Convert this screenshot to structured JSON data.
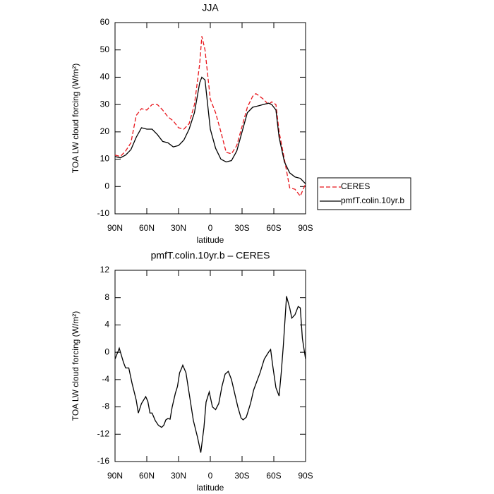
{
  "chart_data": [
    {
      "type": "line",
      "title": "JJA",
      "xlabel": "latitude",
      "ylabel": "TOA LW cloud forcing (W/m²)",
      "x": [
        90,
        85,
        80,
        75,
        70,
        65,
        60,
        55,
        50,
        45,
        40,
        35,
        30,
        25,
        20,
        15,
        10,
        8,
        5,
        0,
        -5,
        -10,
        -15,
        -20,
        -25,
        -30,
        -35,
        -40,
        -43,
        -45,
        -50,
        -55,
        -58,
        -62,
        -65,
        -70,
        -75,
        -80,
        -85,
        -90
      ],
      "series": [
        {
          "name": "CERES",
          "color": "#e8151b",
          "dash": true,
          "values": [
            11.5,
            11,
            13,
            16,
            26,
            28.5,
            28,
            30,
            30,
            28,
            25.5,
            24,
            21.5,
            21,
            23,
            30,
            45,
            55,
            50,
            32,
            27,
            20,
            12.5,
            12,
            15,
            22,
            29,
            33,
            34,
            33.5,
            32,
            30,
            31,
            30,
            20,
            10,
            -0.5,
            -1,
            -3.5,
            1
          ]
        },
        {
          "name": "pmfT.colin.10yr.b",
          "color": "#000000",
          "dash": false,
          "values": [
            11,
            10.5,
            11.5,
            13.5,
            18,
            21.5,
            21,
            21,
            19,
            16.5,
            16,
            14.5,
            15,
            17,
            21,
            27,
            38,
            40,
            39,
            21,
            14,
            10,
            9,
            9.5,
            13,
            20,
            27,
            29,
            29.3,
            29.5,
            30,
            30.5,
            30,
            28,
            18,
            9,
            5,
            3.5,
            3,
            1
          ]
        }
      ],
      "xlim": [
        90,
        -90
      ],
      "xticks": [
        {
          "value": 90,
          "label": "90N"
        },
        {
          "value": 60,
          "label": "60N"
        },
        {
          "value": 30,
          "label": "30N"
        },
        0,
        {
          "value": -30,
          "label": "30S"
        },
        {
          "value": -60,
          "label": "60S"
        },
        {
          "value": -90,
          "label": "90S"
        }
      ],
      "ylim": [
        -10,
        60
      ],
      "yticks": [
        -10,
        0,
        10,
        20,
        30,
        40,
        50,
        60
      ],
      "legend": "right"
    },
    {
      "type": "line",
      "title": "pmfT.colin.10yr.b – CERES",
      "xlabel": "latitude",
      "ylabel": "TOA LW cloud forcing (W/m²)",
      "x": [
        90,
        86,
        82,
        80,
        77,
        74,
        70,
        68,
        65,
        61,
        59,
        57,
        55,
        52,
        49,
        46,
        44,
        42,
        40,
        38,
        36,
        33,
        31,
        29,
        27,
        26,
        23,
        20,
        16,
        12,
        9,
        6,
        4,
        1,
        -2,
        -5,
        -8,
        -11,
        -14,
        -17,
        -20,
        -23,
        -26,
        -29,
        -31,
        -34,
        -38,
        -41,
        -47,
        -51,
        -55,
        -57,
        -59,
        -62,
        -65,
        -67,
        -69,
        -72,
        -75,
        -77,
        -80,
        -83,
        -85,
        -87,
        -90
      ],
      "series": [
        {
          "color": "#000000",
          "dash": false,
          "values": [
            -1,
            0.6,
            -1.5,
            -2.3,
            -2.3,
            -4.5,
            -7,
            -8.9,
            -7.5,
            -6.5,
            -7.2,
            -8.9,
            -8.9,
            -10,
            -10.7,
            -11,
            -10.7,
            -9.9,
            -9.7,
            -9.8,
            -8,
            -6,
            -5,
            -3,
            -2.3,
            -1.9,
            -3,
            -6,
            -10,
            -12.5,
            -14.7,
            -11,
            -7.3,
            -5.8,
            -8,
            -8.4,
            -7.5,
            -5,
            -3.2,
            -2.8,
            -4,
            -6,
            -8,
            -9.6,
            -9.9,
            -9.5,
            -7.5,
            -5.5,
            -3,
            -1,
            0,
            0.4,
            -2,
            -5.2,
            -6.4,
            -3,
            1,
            8.2,
            6.5,
            5,
            5.5,
            6.7,
            6.5,
            2,
            -1
          ]
        }
      ],
      "xlim": [
        90,
        -90
      ],
      "xticks": [
        {
          "value": 90,
          "label": "90N"
        },
        {
          "value": 60,
          "label": "60N"
        },
        {
          "value": 30,
          "label": "30N"
        },
        0,
        {
          "value": -30,
          "label": "30S"
        },
        {
          "value": -60,
          "label": "60S"
        },
        {
          "value": -90,
          "label": "90S"
        }
      ],
      "ylim": [
        -16,
        12
      ],
      "yticks": [
        -16,
        -12,
        -8,
        -4,
        0,
        4,
        8,
        12
      ]
    }
  ]
}
